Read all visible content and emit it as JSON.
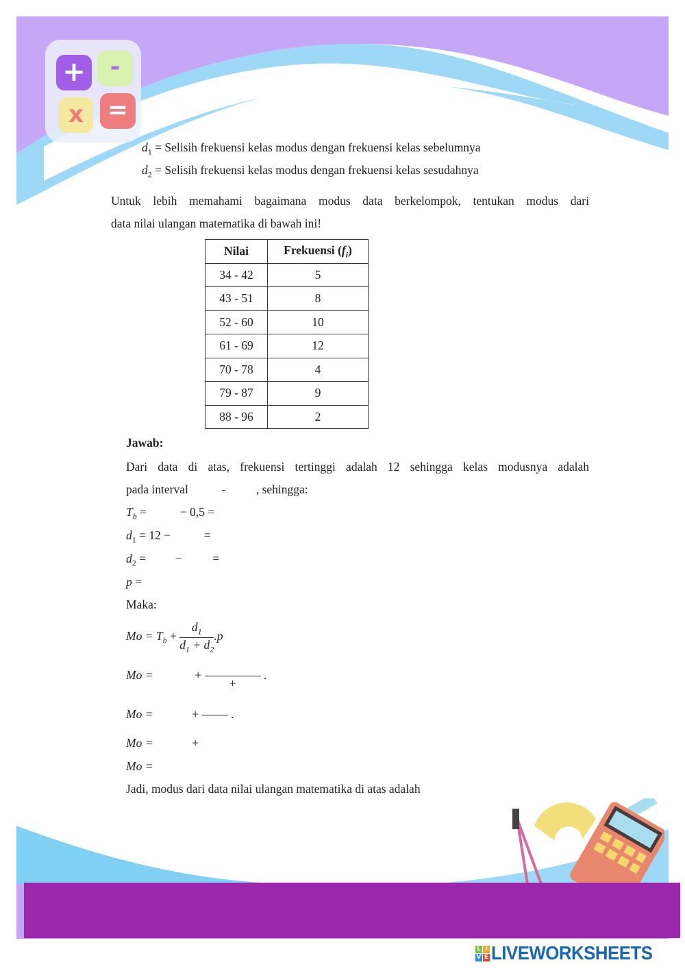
{
  "definitions": [
    {
      "symbol": "d",
      "sub": "1",
      "text": "= Selisih frekuensi kelas modus dengan frekuensi kelas sebelumnya"
    },
    {
      "symbol": "d",
      "sub": "2",
      "text": "= Selisih frekuensi kelas modus dengan frekuensi kelas sesudahnya"
    }
  ],
  "intro": {
    "line1": "Untuk lebih memahami bagaimana modus data berkelompok, tentukan modus dari",
    "line2": "data nilai ulangan matematika di bawah ini!"
  },
  "table": {
    "headers": [
      "Nilai",
      "Frekuensi (",
      "f",
      "i",
      ")"
    ],
    "rows": [
      [
        "34 - 42",
        "5"
      ],
      [
        "43 - 51",
        "8"
      ],
      [
        "52 - 60",
        "10"
      ],
      [
        "61 - 69",
        "12"
      ],
      [
        "70 - 78",
        "4"
      ],
      [
        "79 - 87",
        "9"
      ],
      [
        "88 - 96",
        "2"
      ]
    ]
  },
  "answer": {
    "heading": "Jawab:",
    "line1": "Dari data di atas, frekuensi tertinggi adalah 12 sehingga kelas modusnya adalah",
    "line2a": "pada interval",
    "line2b": "-",
    "line2c": ", sehingga:",
    "tb": {
      "lhs": "T",
      "sub": "b",
      "eq": "=",
      "rest": "− 0,5 ="
    },
    "d1": {
      "lhs": "d",
      "sub": "1",
      "rest": "= 12 −",
      "eq": "="
    },
    "d2": {
      "lhs": "d",
      "sub": "2",
      "eq": "=",
      "minus": "−",
      "eq2": "="
    },
    "p": {
      "lhs": "p",
      "eq": "="
    },
    "maka": "Maka:",
    "formula": {
      "lhs": "Mo = T",
      "sub": "b",
      "plus": "+",
      "num": "d",
      "num_sub": "1",
      "den": "d",
      "den_sub1": "1",
      "den_plus": " + d",
      "den_sub2": "2",
      "tail": ".p"
    },
    "mo_lhs": "Mo =",
    "plus": "+",
    "dot": ".",
    "conclusion": "Jadi, modus dari data nilai ulangan matematika di atas adalah"
  },
  "logo": {
    "text": "LIVEWORKSHEETS",
    "mark": "LIVE"
  },
  "colors": {
    "header_purple": "#c6a6f7",
    "wave_blue": "#9dd8f7",
    "footer_purple": "#9b27ad"
  }
}
